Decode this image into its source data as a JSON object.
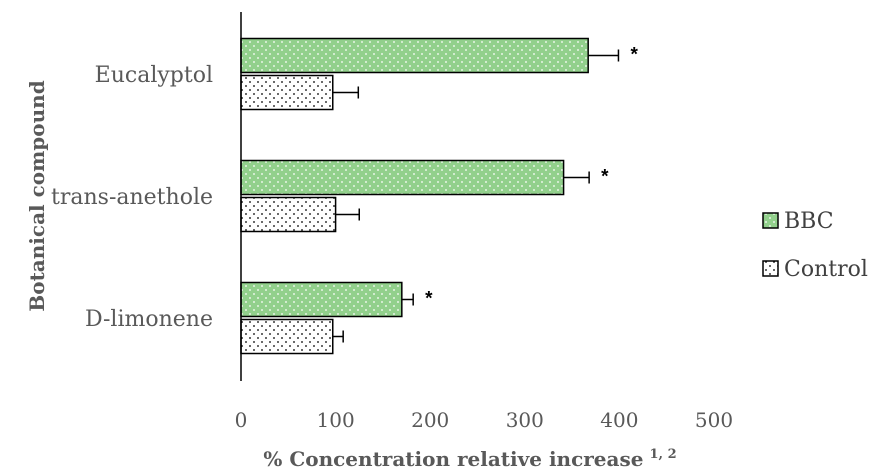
{
  "chart_data": {
    "type": "bar",
    "orientation": "horizontal",
    "categories": [
      "Eucalyptol",
      "trans-anethole",
      "D-limonene"
    ],
    "series": [
      {
        "name": "BBC",
        "values": [
          367,
          341,
          170
        ],
        "errors": [
          32,
          27,
          12
        ],
        "significance": [
          "*",
          "*",
          "*"
        ],
        "color": "#92D08C"
      },
      {
        "name": "Control",
        "values": [
          97,
          100,
          97
        ],
        "errors": [
          27,
          25,
          11
        ],
        "significance": [
          "",
          "",
          ""
        ],
        "color": "#ffffff"
      }
    ],
    "xlim": [
      0,
      500
    ],
    "xticks": [
      "0",
      "100",
      "200",
      "300",
      "400",
      "500"
    ],
    "xlabel": "% Concentration relative increase",
    "xlabel_superscript": "1, 2",
    "ylabel": "Botanical compound",
    "legend_position": "right",
    "grid": false
  }
}
